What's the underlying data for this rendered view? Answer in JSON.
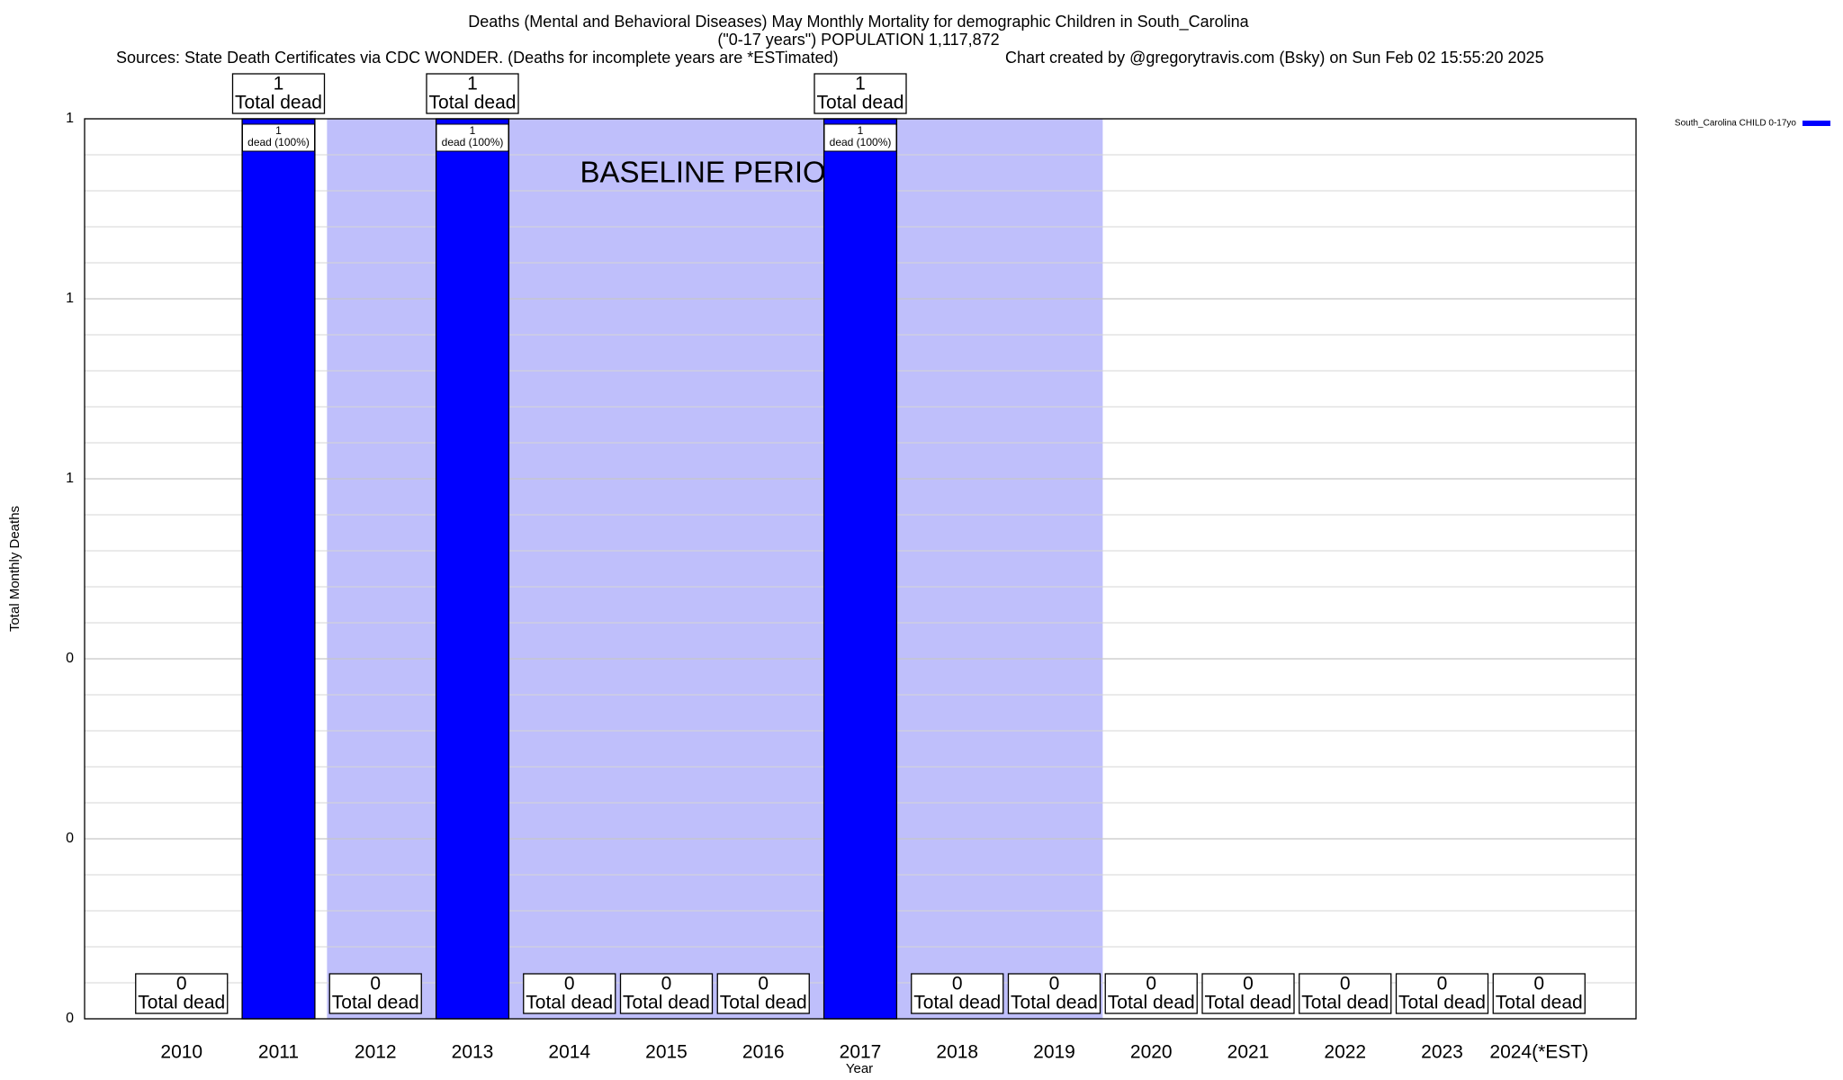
{
  "chart_data": {
    "type": "bar",
    "title": "Deaths (Mental and Behavioral Diseases) May Monthly Mortality for demographic Children in South_Carolina",
    "subtitle": "(\"0-17 years\") POPULATION 1,117,872",
    "source": "Sources: State Death Certificates via CDC WONDER. (Deaths for incomplete years are *ESTimated)",
    "credit": "Chart created by @gregorytravis.com (Bsky) on Sun Feb 02 15:55:20 2025",
    "x_label": "Year",
    "y_label": "Total Monthly Deaths",
    "categories": [
      "2010",
      "2011",
      "2012",
      "2013",
      "2014",
      "2015",
      "2016",
      "2017",
      "2018",
      "2019",
      "2020",
      "2021",
      "2022",
      "2023",
      "2024(*EST)"
    ],
    "series": [
      {
        "name": "South_Carolina CHILD 0-17yo",
        "color": "#0000ff",
        "values": [
          0,
          1,
          0,
          1,
          0,
          0,
          0,
          1,
          0,
          0,
          0,
          0,
          0,
          0,
          0
        ],
        "share_labels": [
          null,
          "dead (100%)",
          null,
          "dead (100%)",
          null,
          null,
          null,
          "dead (100%)",
          null,
          null,
          null,
          null,
          null,
          null,
          null
        ]
      }
    ],
    "total_label": "Total dead",
    "baseline": {
      "label": "BASELINE PERIOD",
      "from": "2012",
      "to": "2019",
      "color": "#bfbffb"
    },
    "ylim": [
      0,
      1
    ],
    "yticks": [
      0,
      {
        "value": 0.2,
        "label": "0"
      },
      {
        "value": 0.4,
        "label": "0"
      },
      {
        "value": 0.6,
        "label": "1"
      },
      {
        "value": 0.8,
        "label": "1"
      },
      1
    ],
    "grid": true,
    "legend": "top-right"
  }
}
